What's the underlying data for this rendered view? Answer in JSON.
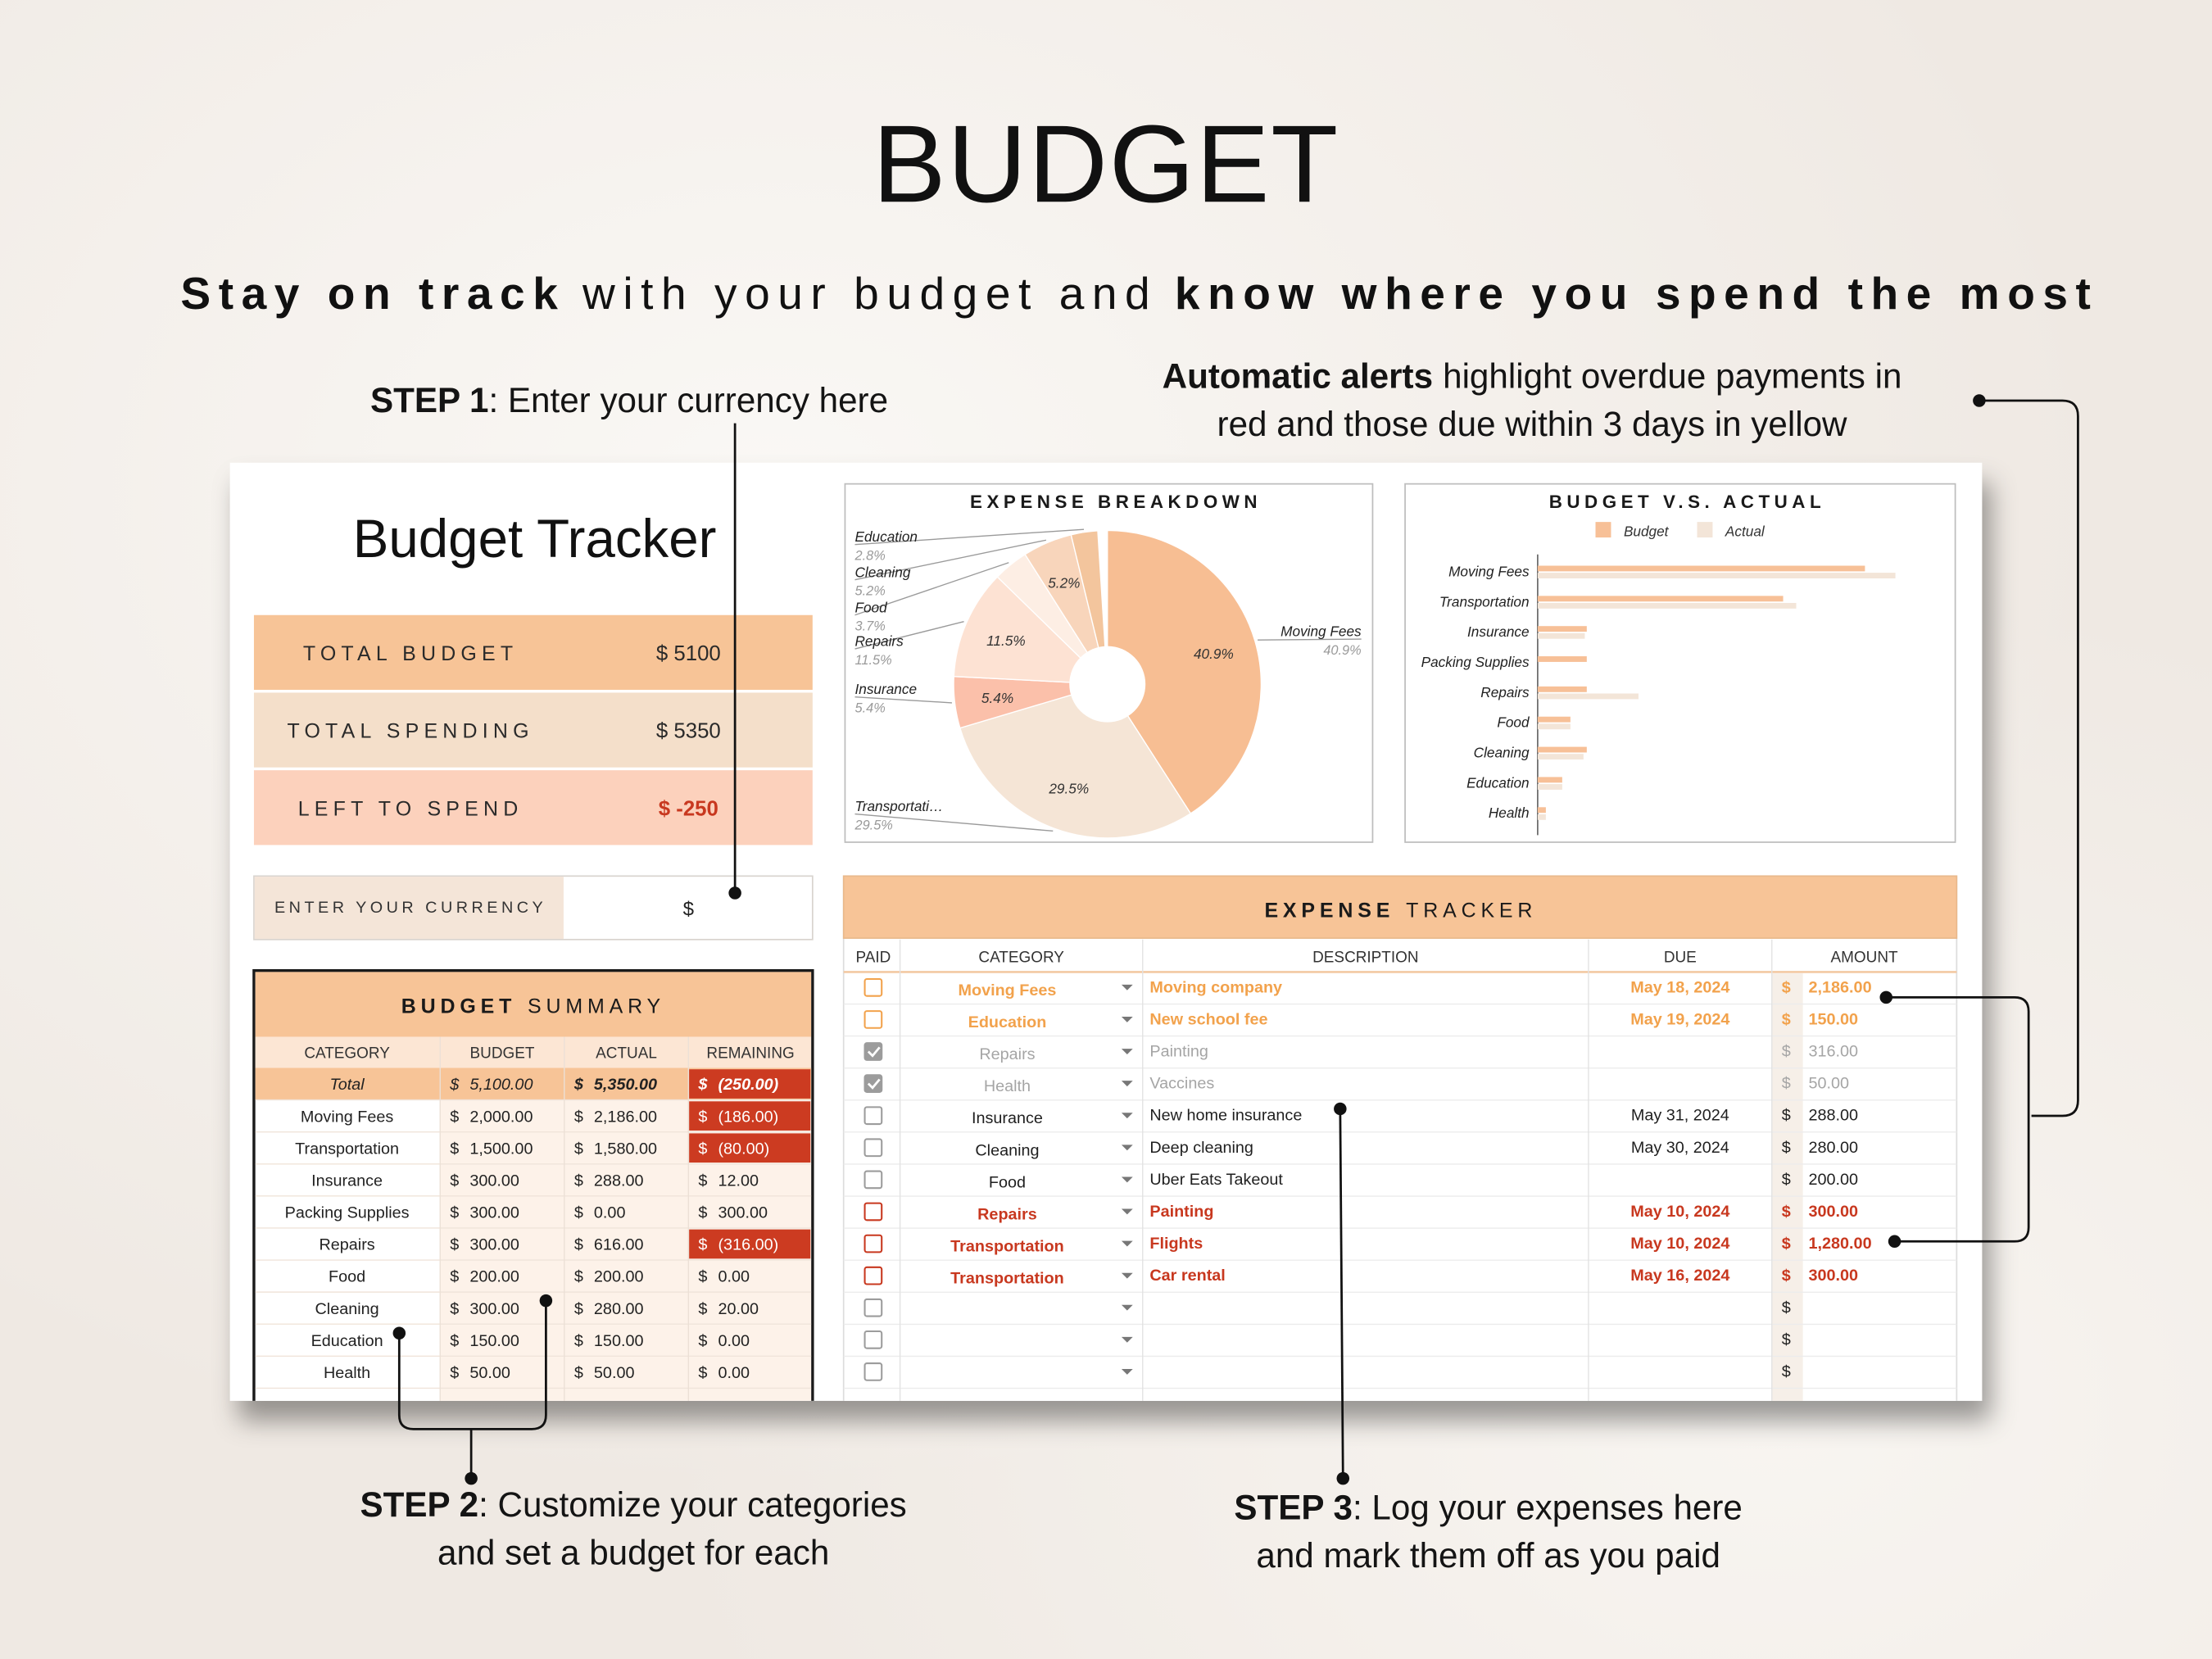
{
  "header": {
    "title": "BUDGET",
    "subtitle": [
      "Stay on track",
      "with your budget and",
      "know where you spend the most"
    ]
  },
  "callouts": {
    "step1": {
      "label": "STEP 1",
      "lines": [
        ": Enter your currency here"
      ]
    },
    "alerts": {
      "label": "Automatic alerts",
      "lines": [
        "highlight overdue payments in",
        "red and those due within 3 days in yellow"
      ]
    },
    "step2": {
      "label": "STEP 2",
      "lines": [
        ": Customize your categories",
        "and set a budget for each"
      ]
    },
    "step3": {
      "label": "STEP 3",
      "lines": [
        ": Log your expenses here",
        "and mark them off as you paid"
      ]
    }
  },
  "sheet": {
    "title": "Budget Tracker",
    "cards": [
      {
        "label": "TOTAL BUDGET",
        "value": "$ 5100",
        "color": "#f7c497"
      },
      {
        "label": "TOTAL SPENDING",
        "value": "$ 5350",
        "color": "#f4dfca"
      },
      {
        "label": "LEFT TO SPEND",
        "value": "$ -250",
        "color": "#fcd1bc"
      }
    ],
    "currency": {
      "label": "ENTER YOUR CURRENCY",
      "value": "$"
    },
    "budget_summary": {
      "title": [
        "BUDGET",
        "SUMMARY"
      ],
      "columns": [
        "CATEGORY",
        "BUDGET",
        "ACTUAL",
        "REMAINING"
      ],
      "rows": [
        [
          "Total",
          "5,100.00",
          "5,350.00",
          "(250.00)"
        ],
        [
          "Moving Fees",
          "2,000.00",
          "2,186.00",
          "(186.00)"
        ],
        [
          "Transportation",
          "1,500.00",
          "1,580.00",
          "(80.00)"
        ],
        [
          "Insurance",
          "300.00",
          "288.00",
          "12.00"
        ],
        [
          "Packing Supplies",
          "300.00",
          "0.00",
          "300.00"
        ],
        [
          "Repairs",
          "300.00",
          "616.00",
          "(316.00)"
        ],
        [
          "Food",
          "200.00",
          "200.00",
          "0.00"
        ],
        [
          "Cleaning",
          "300.00",
          "280.00",
          "20.00"
        ],
        [
          "Education",
          "150.00",
          "150.00",
          "0.00"
        ],
        [
          "Health",
          "50.00",
          "50.00",
          "0.00"
        ]
      ]
    },
    "expense_tracker": {
      "title": [
        "EXPENSE",
        "TRACKER"
      ],
      "columns": [
        "PAID",
        "CATEGORY",
        "DESCRIPTION",
        "DUE",
        "AMOUNT"
      ],
      "alert_colors": {
        "soon": "#f2a24c",
        "overdue": "#c8381f"
      },
      "rows": [
        {
          "paid": false,
          "category": "Moving Fees",
          "description": "Moving company",
          "due": "May 18, 2024",
          "amount": "2,186.00",
          "alert": "soon"
        },
        {
          "paid": false,
          "category": "Education",
          "description": "New school fee",
          "due": "May 19, 2024",
          "amount": "150.00",
          "alert": "soon"
        },
        {
          "paid": true,
          "category": "Repairs",
          "description": "Painting",
          "amount": "316.00"
        },
        {
          "paid": true,
          "category": "Health",
          "description": "Vaccines",
          "amount": "50.00"
        },
        {
          "paid": false,
          "category": "Insurance",
          "description": "New home insurance",
          "due": "May 31, 2024",
          "amount": "288.00"
        },
        {
          "paid": false,
          "category": "Cleaning",
          "description": "Deep cleaning",
          "due": "May 30, 2024",
          "amount": "280.00"
        },
        {
          "paid": false,
          "category": "Food",
          "description": "Uber Eats Takeout",
          "amount": "200.00"
        },
        {
          "paid": false,
          "category": "Repairs",
          "description": "Painting",
          "due": "May 10, 2024",
          "amount": "300.00",
          "alert": "overdue"
        },
        {
          "paid": false,
          "category": "Transportation",
          "description": "Flights",
          "due": "May 10, 2024",
          "amount": "1,280.00",
          "alert": "overdue"
        },
        {
          "paid": false,
          "category": "Transportation",
          "description": "Car rental",
          "due": "May 16, 2024",
          "amount": "300.00",
          "alert": "overdue"
        },
        {
          "paid": false
        },
        {
          "paid": false
        },
        {
          "paid": false
        }
      ]
    }
  },
  "chart_data": [
    {
      "type": "pie",
      "title": "EXPENSE BREAKDOWN",
      "categories": [
        "Moving Fees",
        "Transportati…",
        "Insurance",
        "Repairs",
        "Food",
        "Cleaning",
        "Education"
      ],
      "values": [
        40.9,
        29.5,
        5.4,
        11.5,
        3.7,
        5.2,
        2.8
      ],
      "value_labels": [
        "40.9%",
        "29.5%",
        "5.4%",
        "11.5%",
        "3.7%",
        "5.2%",
        "2.8%"
      ],
      "colors": [
        "#f7be93",
        "#f5e5d6",
        "#fbc0aa",
        "#fde2d3",
        "#fdeee4",
        "#f8d5bb",
        "#f3c59d"
      ]
    },
    {
      "type": "bar",
      "orientation": "horizontal",
      "title": "BUDGET V.S. ACTUAL",
      "categories": [
        "Moving Fees",
        "Transportation",
        "Insurance",
        "Packing Supplies",
        "Repairs",
        "Food",
        "Cleaning",
        "Education",
        "Health"
      ],
      "series": [
        {
          "name": "Budget",
          "color": "#f7c097",
          "values": [
            2000,
            1500,
            300,
            300,
            300,
            200,
            300,
            150,
            50
          ]
        },
        {
          "name": "Actual",
          "color": "#f3e5d8",
          "values": [
            2186,
            1580,
            288,
            0,
            616,
            200,
            280,
            150,
            50
          ]
        }
      ],
      "xlim": [
        0,
        2500
      ]
    }
  ]
}
